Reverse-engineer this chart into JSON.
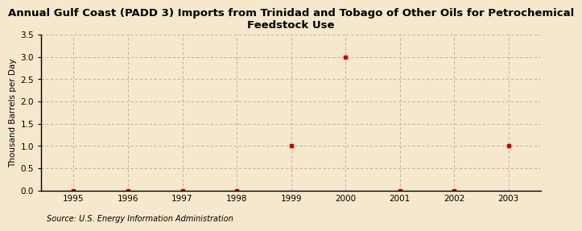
{
  "title": "Annual Gulf Coast (PADD 3) Imports from Trinidad and Tobago of Other Oils for Petrochemical\nFeedstock Use",
  "ylabel": "Thousand Barrels per Day",
  "source": "Source: U.S. Energy Information Administration",
  "x_values": [
    1995,
    1996,
    1997,
    1998,
    1999,
    2000,
    2001,
    2002,
    2003
  ],
  "y_values": [
    0,
    0,
    0,
    0,
    1.0,
    3.0,
    0,
    0,
    1.0
  ],
  "xlim": [
    1994.4,
    2003.6
  ],
  "ylim": [
    0,
    3.5
  ],
  "yticks": [
    0.0,
    0.5,
    1.0,
    1.5,
    2.0,
    2.5,
    3.0,
    3.5
  ],
  "xticks": [
    1995,
    1996,
    1997,
    1998,
    1999,
    2000,
    2001,
    2002,
    2003
  ],
  "marker_color": "#cc0000",
  "marker": "s",
  "marker_size": 3.5,
  "grid_color": "#aaaaaa",
  "bg_color": "#f5e8cc",
  "title_fontsize": 9.5,
  "label_fontsize": 7.5,
  "tick_fontsize": 7.5,
  "source_fontsize": 7.0
}
